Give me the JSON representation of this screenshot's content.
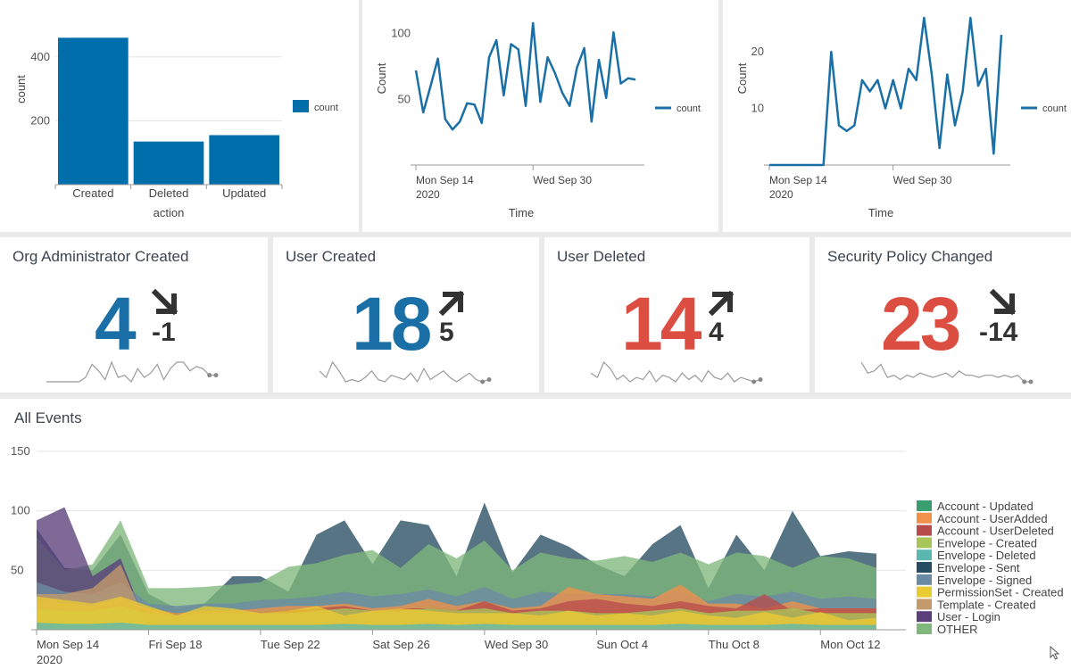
{
  "colors": {
    "bar": "#006eaa",
    "line": "#1a70a6",
    "kpi_blue": "#1a70a6",
    "kpi_red": "#dc4e41",
    "spark": "#9a9a9a"
  },
  "chart_data": [
    {
      "id": "action-bar",
      "type": "bar",
      "categories": [
        "Created",
        "Deleted",
        "Updated"
      ],
      "values": [
        460,
        135,
        155
      ],
      "xlabel": "action",
      "ylabel": "count",
      "yticks": [
        200,
        400
      ],
      "ylim": [
        0,
        500
      ],
      "grid": true,
      "legend": {
        "position": "right",
        "entries": [
          "count"
        ]
      }
    },
    {
      "id": "count-line-1",
      "type": "line",
      "x_tick_labels": [
        {
          "at": 0,
          "label": "Mon Sep 14",
          "sub": "2020"
        },
        {
          "at": 16,
          "label": "Wed Sep 30",
          "sub": ""
        }
      ],
      "xlabel": "Time",
      "ylabel": "Count",
      "yticks": [
        50,
        100
      ],
      "ylim": [
        0,
        112
      ],
      "legend": {
        "position": "right",
        "entries": [
          "count"
        ]
      },
      "series": [
        {
          "name": "count",
          "values": [
            72,
            40,
            60,
            81,
            35,
            27,
            33,
            47,
            46,
            32,
            82,
            95,
            53,
            92,
            88,
            45,
            108,
            48,
            82,
            70,
            55,
            45,
            74,
            89,
            33,
            80,
            51,
            101,
            62,
            66,
            65
          ]
        }
      ]
    },
    {
      "id": "count-line-2",
      "type": "line",
      "x_tick_labels": [
        {
          "at": 0,
          "label": "Mon Sep 14",
          "sub": "2020"
        },
        {
          "at": 16,
          "label": "Wed Sep 30",
          "sub": ""
        }
      ],
      "xlabel": "Time",
      "ylabel": "Count",
      "yticks": [
        10,
        20
      ],
      "ylim": [
        0,
        26
      ],
      "legend": {
        "position": "right",
        "entries": [
          "count"
        ]
      },
      "series": [
        {
          "name": "count",
          "values": [
            0,
            0,
            0,
            0,
            0,
            0,
            0,
            0,
            20,
            7,
            6,
            7,
            15,
            13,
            15,
            10,
            15,
            10,
            17,
            15,
            26,
            16,
            3,
            16,
            7,
            13,
            26,
            14,
            17,
            2,
            23
          ]
        }
      ]
    },
    {
      "id": "all-events",
      "type": "area",
      "title": "All Events",
      "yticks": [
        50,
        100,
        150
      ],
      "ylim": [
        0,
        150
      ],
      "x_tick_labels": [
        {
          "at": 0,
          "label": "Mon Sep 14",
          "sub": "2020"
        },
        {
          "at": 4,
          "label": "Fri Sep 18",
          "sub": ""
        },
        {
          "at": 8,
          "label": "Tue Sep 22",
          "sub": ""
        },
        {
          "at": 12,
          "label": "Sat Sep 26",
          "sub": ""
        },
        {
          "at": 16,
          "label": "Wed Sep 30",
          "sub": ""
        },
        {
          "at": 20,
          "label": "Sun Oct 4",
          "sub": ""
        },
        {
          "at": 24,
          "label": "Thu Oct 8",
          "sub": ""
        },
        {
          "at": 28,
          "label": "Mon Oct 12",
          "sub": ""
        }
      ],
      "legend": {
        "position": "right"
      },
      "series": [
        {
          "name": "Envelope - Sent",
          "color": "#264d61",
          "values": [
            85,
            52,
            50,
            80,
            30,
            18,
            22,
            45,
            45,
            32,
            80,
            92,
            55,
            92,
            88,
            45,
            107,
            48,
            80,
            70,
            55,
            45,
            72,
            88,
            35,
            80,
            50,
            100,
            62,
            66,
            64
          ]
        },
        {
          "name": "OTHER",
          "color": "#7fb77c",
          "values": [
            78,
            50,
            55,
            92,
            35,
            35,
            36,
            38,
            40,
            53,
            56,
            63,
            67,
            52,
            72,
            60,
            75,
            50,
            65,
            60,
            58,
            62,
            57,
            65,
            55,
            65,
            62,
            52,
            62,
            60,
            52
          ]
        },
        {
          "name": "User - Login",
          "color": "#5a3f7a",
          "values": [
            92,
            103,
            45,
            60,
            0,
            0,
            0,
            0,
            0,
            0,
            0,
            0,
            0,
            0,
            0,
            0,
            0,
            0,
            0,
            0,
            0,
            0,
            0,
            0,
            0,
            0,
            0,
            0,
            0,
            0,
            0
          ]
        },
        {
          "name": "Envelope - Signed",
          "color": "#6b8aa3",
          "values": [
            40,
            32,
            30,
            40,
            22,
            20,
            22,
            22,
            25,
            26,
            28,
            32,
            28,
            30,
            34,
            28,
            36,
            26,
            32,
            30,
            30,
            30,
            28,
            32,
            24,
            30,
            28,
            32,
            26,
            28,
            26
          ]
        },
        {
          "name": "Account - Updated",
          "color": "#3a9e6f",
          "values": [
            22,
            20,
            18,
            22,
            16,
            14,
            16,
            16,
            16,
            18,
            18,
            20,
            16,
            18,
            20,
            18,
            22,
            16,
            18,
            18,
            16,
            16,
            18,
            20,
            16,
            18,
            18,
            20,
            16,
            16,
            16
          ]
        },
        {
          "name": "Account - UserAdded",
          "color": "#f2914a",
          "values": [
            24,
            22,
            20,
            26,
            18,
            14,
            16,
            16,
            18,
            20,
            20,
            22,
            18,
            20,
            26,
            20,
            24,
            18,
            20,
            36,
            30,
            28,
            26,
            38,
            22,
            22,
            18,
            24,
            18,
            18,
            18
          ]
        },
        {
          "name": "Account - UserDeleted",
          "color": "#b84c4c",
          "values": [
            20,
            18,
            18,
            22,
            14,
            12,
            14,
            14,
            14,
            16,
            18,
            20,
            16,
            18,
            18,
            16,
            24,
            16,
            18,
            24,
            26,
            22,
            20,
            24,
            20,
            18,
            30,
            16,
            18,
            18,
            18
          ]
        },
        {
          "name": "Template - Created",
          "color": "#c49a6c",
          "values": [
            30,
            30,
            35,
            55,
            0,
            0,
            0,
            0,
            0,
            0,
            0,
            0,
            0,
            0,
            0,
            0,
            0,
            0,
            0,
            0,
            0,
            0,
            0,
            0,
            0,
            0,
            0,
            0,
            0,
            0,
            0
          ]
        },
        {
          "name": "Envelope - Created",
          "color": "#a8c55a",
          "values": [
            18,
            16,
            16,
            20,
            14,
            12,
            14,
            14,
            14,
            14,
            16,
            18,
            16,
            16,
            18,
            16,
            18,
            14,
            16,
            16,
            14,
            14,
            16,
            18,
            14,
            16,
            16,
            18,
            14,
            14,
            14
          ]
        },
        {
          "name": "PermissionSet - Created",
          "color": "#ebcb32",
          "values": [
            28,
            25,
            22,
            28,
            20,
            12,
            20,
            18,
            14,
            16,
            20,
            12,
            16,
            18,
            16,
            14,
            14,
            14,
            12,
            16,
            12,
            14,
            12,
            16,
            12,
            10,
            15,
            10,
            15,
            8,
            10
          ]
        },
        {
          "name": "Envelope - Deleted",
          "color": "#5bb8b0",
          "values": [
            6,
            5,
            5,
            6,
            4,
            4,
            4,
            4,
            4,
            4,
            4,
            5,
            4,
            4,
            5,
            4,
            5,
            4,
            4,
            4,
            4,
            4,
            4,
            5,
            4,
            4,
            4,
            5,
            4,
            4,
            4
          ]
        }
      ],
      "legend_entries": [
        {
          "name": "Account - Updated",
          "color": "#3a9e6f"
        },
        {
          "name": "Account - UserAdded",
          "color": "#f2914a"
        },
        {
          "name": "Account - UserDeleted",
          "color": "#b84c4c"
        },
        {
          "name": "Envelope - Created",
          "color": "#a8c55a"
        },
        {
          "name": "Envelope - Deleted",
          "color": "#5bb8b0"
        },
        {
          "name": "Envelope - Sent",
          "color": "#264d61"
        },
        {
          "name": "Envelope - Signed",
          "color": "#6b8aa3"
        },
        {
          "name": "PermissionSet - Created",
          "color": "#ebcb32"
        },
        {
          "name": "Template - Created",
          "color": "#c49a6c"
        },
        {
          "name": "User - Login",
          "color": "#5a3f7a"
        },
        {
          "name": "OTHER",
          "color": "#7fb77c"
        }
      ]
    }
  ],
  "kpis": [
    {
      "title": "Org Administrator Created",
      "value": "4",
      "delta": "-1",
      "direction": "down",
      "color": "#1a70a6",
      "spark": [
        0,
        0,
        0,
        0,
        0,
        0,
        2,
        8,
        5,
        1,
        9,
        2,
        3,
        0,
        6,
        2,
        4,
        8,
        1,
        6,
        9,
        9,
        5,
        7,
        6,
        3,
        3
      ]
    },
    {
      "title": "User Created",
      "value": "18",
      "delta": "5",
      "direction": "up",
      "color": "#1a70a6",
      "spark": [
        5,
        2,
        9,
        5,
        0,
        1,
        0,
        2,
        5,
        1,
        0,
        3,
        2,
        1,
        4,
        0,
        6,
        1,
        3,
        5,
        2,
        0,
        2,
        4,
        1,
        0,
        1
      ]
    },
    {
      "title": "User Deleted",
      "value": "14",
      "delta": "4",
      "direction": "up",
      "color": "#dc4e41",
      "spark": [
        4,
        2,
        9,
        6,
        1,
        3,
        0,
        2,
        1,
        5,
        0,
        3,
        2,
        0,
        4,
        1,
        3,
        0,
        5,
        2,
        1,
        4,
        0,
        2,
        1,
        0,
        1
      ]
    },
    {
      "title": "Security Policy Changed",
      "value": "23",
      "delta": "-14",
      "direction": "down",
      "color": "#dc4e41",
      "spark": [
        9,
        4,
        5,
        8,
        2,
        3,
        1,
        3,
        2,
        4,
        3,
        2,
        3,
        4,
        2,
        5,
        3,
        3,
        2,
        3,
        3,
        2,
        3,
        2,
        3,
        0,
        0
      ]
    }
  ]
}
